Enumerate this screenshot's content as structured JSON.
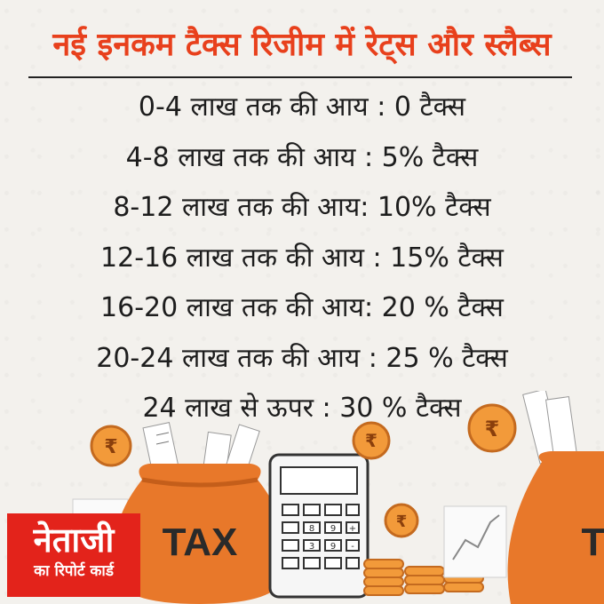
{
  "title": "नई इनकम टैक्स रिजीम में रेट्स और स्लैब्स",
  "slabs": [
    "0-4 लाख तक की आय : 0 टैक्स",
    "4-8 लाख तक की आय : 5% टैक्स",
    "8-12 लाख तक की आय: 10% टैक्स",
    "12-16 लाख तक की आय : 15% टैक्स",
    "16-20 लाख तक की आय: 20 % टैक्स",
    "20-24 लाख तक की आय : 25 % टैक्स",
    "24 लाख से ऊपर : 30 % टैक्स"
  ],
  "illustration": {
    "bag_label": "TAX",
    "bag_label_right": "T",
    "coin_symbol": "₹",
    "calculator_keys": [
      "8",
      "9",
      "+",
      "3",
      "9",
      "-"
    ]
  },
  "logo": {
    "main": "नेताजी",
    "sub": "का रिपोर्ट कार्ड"
  },
  "colors": {
    "title": "#e8401c",
    "bag": "#e8782a",
    "coin": "#f29a3a",
    "logo_bg": "#e3231b"
  }
}
